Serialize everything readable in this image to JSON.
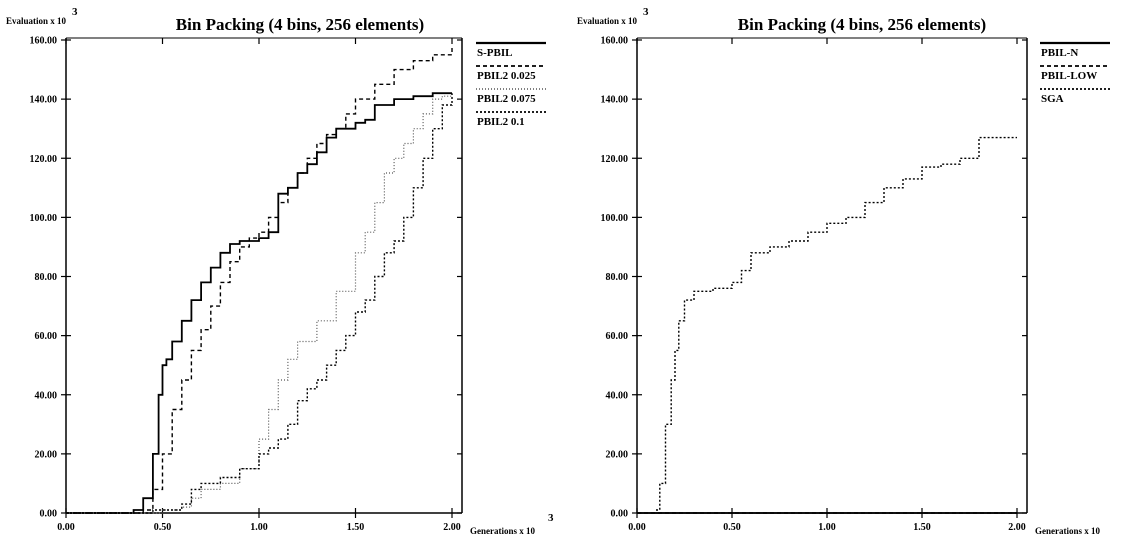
{
  "chart_data": [
    {
      "type": "line",
      "title": "Bin Packing (4 bins, 256 elements)",
      "ylabel": "Evaluation x 10",
      "ylabel_exponent": "3",
      "xlabel": "Generations x 10",
      "xlabel_exponent": "3",
      "xlim": [
        0,
        2.0
      ],
      "ylim": [
        0,
        160
      ],
      "xticks": [
        "0.00",
        "0.50",
        "1.00",
        "1.50",
        "2.00"
      ],
      "yticks": [
        "0.00",
        "20.00",
        "40.00",
        "60.00",
        "80.00",
        "100.00",
        "120.00",
        "140.00",
        "160.00"
      ],
      "legend_position": "right",
      "series": [
        {
          "name": "S-PBIL",
          "style": "solid",
          "x": [
            0,
            0.2,
            0.35,
            0.4,
            0.45,
            0.48,
            0.5,
            0.52,
            0.55,
            0.6,
            0.65,
            0.7,
            0.75,
            0.8,
            0.85,
            0.9,
            1.0,
            1.05,
            1.1,
            1.15,
            1.2,
            1.25,
            1.3,
            1.35,
            1.4,
            1.5,
            1.55,
            1.6,
            1.7,
            1.8,
            1.9,
            2.0
          ],
          "y": [
            0,
            0,
            1,
            5,
            20,
            40,
            50,
            52,
            58,
            65,
            72,
            78,
            83,
            88,
            91,
            92,
            93,
            95,
            108,
            110,
            115,
            118,
            122,
            127,
            130,
            132,
            133,
            138,
            140,
            141,
            142,
            142
          ]
        },
        {
          "name": "PBIL2 0.025",
          "style": "dashed",
          "x": [
            0,
            0.3,
            0.4,
            0.45,
            0.5,
            0.55,
            0.6,
            0.65,
            0.7,
            0.75,
            0.8,
            0.85,
            0.9,
            0.95,
            1.0,
            1.05,
            1.1,
            1.15,
            1.2,
            1.25,
            1.3,
            1.35,
            1.4,
            1.45,
            1.5,
            1.6,
            1.7,
            1.8,
            1.9,
            2.0
          ],
          "y": [
            0,
            0,
            1,
            8,
            20,
            35,
            45,
            55,
            62,
            70,
            78,
            85,
            90,
            93,
            95,
            100,
            105,
            110,
            115,
            120,
            125,
            128,
            130,
            135,
            140,
            145,
            150,
            153,
            155,
            158
          ]
        },
        {
          "name": "PBIL2 0.075",
          "style": "dotted-light",
          "x": [
            0,
            0.3,
            0.4,
            0.5,
            0.6,
            0.65,
            0.7,
            0.8,
            0.9,
            1.0,
            1.05,
            1.1,
            1.15,
            1.2,
            1.3,
            1.4,
            1.5,
            1.55,
            1.6,
            1.65,
            1.7,
            1.75,
            1.8,
            1.85,
            1.9,
            1.95,
            2.0
          ],
          "y": [
            0,
            0,
            0,
            1,
            2,
            5,
            8,
            10,
            15,
            25,
            35,
            45,
            52,
            58,
            65,
            75,
            88,
            95,
            105,
            115,
            120,
            125,
            130,
            135,
            140,
            141,
            142
          ]
        },
        {
          "name": "PBIL2  0.1",
          "style": "dotted",
          "x": [
            0,
            0.3,
            0.45,
            0.6,
            0.65,
            0.7,
            0.8,
            0.9,
            1.0,
            1.05,
            1.1,
            1.15,
            1.2,
            1.25,
            1.3,
            1.35,
            1.4,
            1.45,
            1.5,
            1.55,
            1.6,
            1.65,
            1.7,
            1.75,
            1.8,
            1.85,
            1.9,
            1.95,
            2.0
          ],
          "y": [
            0,
            0,
            1,
            3,
            8,
            10,
            12,
            15,
            20,
            22,
            25,
            30,
            38,
            42,
            45,
            50,
            55,
            60,
            68,
            72,
            80,
            88,
            92,
            100,
            110,
            120,
            130,
            138,
            142
          ]
        }
      ]
    },
    {
      "type": "line",
      "title": "Bin Packing (4 bins, 256 elements)",
      "ylabel": "Evaluation x 10",
      "ylabel_exponent": "3",
      "xlabel": "Generations x 10",
      "xlim": [
        0,
        2.0
      ],
      "ylim": [
        0,
        160
      ],
      "xticks": [
        "0.00",
        "0.50",
        "1.00",
        "1.50",
        "2.00"
      ],
      "yticks": [
        "0.00",
        "20.00",
        "40.00",
        "60.00",
        "80.00",
        "100.00",
        "120.00",
        "140.00",
        "160.00"
      ],
      "legend_position": "right",
      "series": [
        {
          "name": "PBIL-N",
          "style": "solid",
          "x": [
            0,
            2.0
          ],
          "y": [
            0,
            0
          ]
        },
        {
          "name": "PBIL-LOW",
          "style": "dashed",
          "x": [
            0,
            2.0
          ],
          "y": [
            0,
            0
          ]
        },
        {
          "name": "SGA",
          "style": "dotted",
          "x": [
            0.1,
            0.12,
            0.15,
            0.18,
            0.2,
            0.22,
            0.25,
            0.3,
            0.4,
            0.5,
            0.55,
            0.6,
            0.7,
            0.8,
            0.9,
            1.0,
            1.1,
            1.2,
            1.3,
            1.4,
            1.5,
            1.6,
            1.7,
            1.8,
            1.9,
            2.0
          ],
          "y": [
            1,
            10,
            30,
            45,
            55,
            65,
            72,
            75,
            76,
            78,
            82,
            88,
            90,
            92,
            95,
            98,
            100,
            105,
            110,
            113,
            117,
            118,
            120,
            127,
            127,
            127
          ]
        }
      ]
    }
  ]
}
